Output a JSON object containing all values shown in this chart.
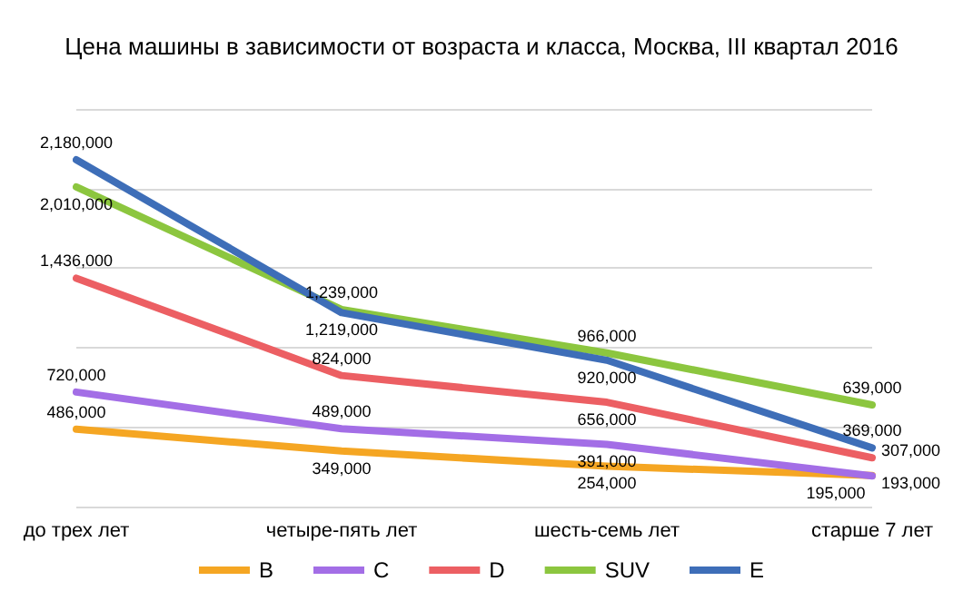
{
  "chart_data": {
    "type": "line",
    "title": "Цена машины в зависимости от возраста и класса, Москва, III квартал 2016",
    "categories": [
      "до трех лет",
      "четыре-пять лет",
      "шесть-семь лет",
      "старше 7 лет"
    ],
    "series": [
      {
        "name": "B",
        "color": "#f5a623",
        "values": [
          486000,
          349000,
          254000,
          195000
        ],
        "value_labels": [
          "486,000",
          "349,000",
          "254,000",
          "195,000"
        ]
      },
      {
        "name": "C",
        "color": "#a36ee6",
        "values": [
          720000,
          489000,
          391000,
          193000
        ],
        "value_labels": [
          "720,000",
          "489,000",
          "391,000",
          "193,000"
        ]
      },
      {
        "name": "D",
        "color": "#ec5f63",
        "values": [
          1436000,
          824000,
          656000,
          307000
        ],
        "value_labels": [
          "1,436,000",
          "824,000",
          "656,000",
          "307,000"
        ]
      },
      {
        "name": "SUV",
        "color": "#8cc63f",
        "values": [
          2010000,
          1239000,
          966000,
          639000
        ],
        "value_labels": [
          "2,010,000",
          "1,239,000",
          "966,000",
          "639,000"
        ]
      },
      {
        "name": "E",
        "color": "#3e6eb8",
        "values": [
          2180000,
          1219000,
          920000,
          369000
        ],
        "value_labels": [
          "2,180,000",
          "1,219,000",
          "920,000",
          "369,000"
        ]
      }
    ],
    "tick_labels": "x",
    "grid": "y",
    "legend": "bottom",
    "marker": "none",
    "line_style": "solid"
  }
}
